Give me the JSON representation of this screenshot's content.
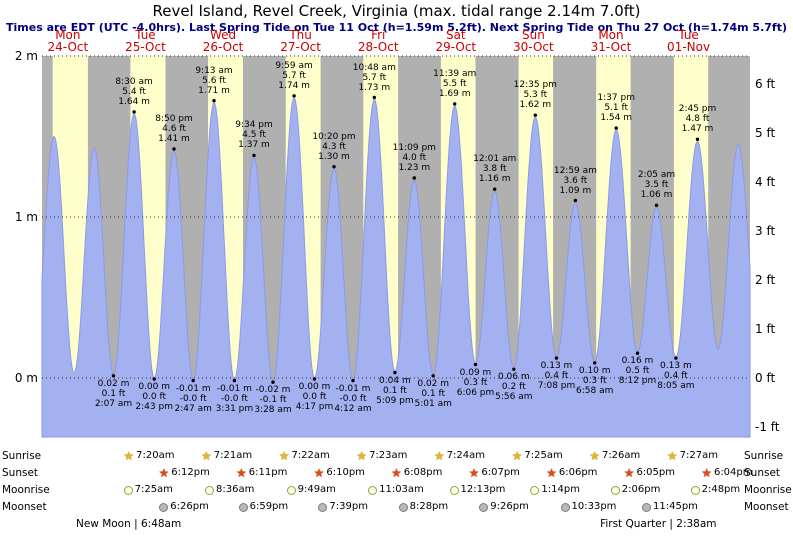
{
  "header": {
    "title": "Revel Island, Revel Creek, Virginia (max. tidal range 2.14m 7.0ft)",
    "subtitle": "Times are EDT (UTC -4.0hrs). Last Spring Tide on Tue 11 Oct (h=1.59m 5.2ft). Next Spring Tide on Thu 27 Oct (h=1.74m 5.7ft)"
  },
  "chart_data": {
    "type": "area",
    "title": "Revel Island, Revel Creek, Virginia tide curve",
    "x_axis": {
      "days": [
        {
          "name": "Mon",
          "date": "24-Oct"
        },
        {
          "name": "Tue",
          "date": "25-Oct"
        },
        {
          "name": "Wed",
          "date": "26-Oct"
        },
        {
          "name": "Thu",
          "date": "27-Oct"
        },
        {
          "name": "Fri",
          "date": "28-Oct"
        },
        {
          "name": "Sat",
          "date": "29-Oct"
        },
        {
          "name": "Sun",
          "date": "30-Oct"
        },
        {
          "name": "Mon",
          "date": "31-Oct"
        },
        {
          "name": "Tue",
          "date": "01-Nov"
        }
      ]
    },
    "y_axis_left": {
      "ticks": [
        {
          "label": "2 m",
          "value_m": 2
        },
        {
          "label": "1 m",
          "value_m": 1
        },
        {
          "label": "0 m",
          "value_m": 0
        }
      ]
    },
    "y_axis_right": {
      "ticks": [
        {
          "label": "6 ft",
          "value_ft": 6
        },
        {
          "label": "5 ft",
          "value_ft": 5
        },
        {
          "label": "4 ft",
          "value_ft": 4
        },
        {
          "label": "3 ft",
          "value_ft": 3
        },
        {
          "label": "2 ft",
          "value_ft": 2
        },
        {
          "label": "1 ft",
          "value_ft": 1
        },
        {
          "label": "0 ft",
          "value_ft": 0
        },
        {
          "label": "-1 ft",
          "value_ft": -1
        }
      ]
    },
    "tide_events": [
      {
        "day": 1,
        "time": "2:07 am",
        "height_m": 0.02,
        "type": "low",
        "label_lines": [
          "0.02 m",
          "0.1 ft",
          "2:07 am"
        ]
      },
      {
        "day": 1,
        "time": "8:30 am",
        "height_m": 1.64,
        "type": "high",
        "label_lines": [
          "8:30 am",
          "5.4 ft",
          "1.64 m"
        ]
      },
      {
        "day": 1,
        "time": "2:43 pm",
        "height_m": 0.0,
        "type": "low",
        "label_lines": [
          "0.00 m",
          "0.0 ft",
          "2:43 pm"
        ]
      },
      {
        "day": 1,
        "time": "8:50 pm",
        "height_m": 1.41,
        "type": "high",
        "label_lines": [
          "8:50 pm",
          "4.6 ft",
          "1.41 m"
        ]
      },
      {
        "day": 2,
        "time": "2:47 am",
        "height_m": -0.01,
        "type": "low",
        "label_lines": [
          "-0.01 m",
          "-0.0 ft",
          "2:47 am"
        ]
      },
      {
        "day": 2,
        "time": "9:13 am",
        "height_m": 1.71,
        "type": "high",
        "label_lines": [
          "9:13 am",
          "5.6 ft",
          "1.71 m"
        ]
      },
      {
        "day": 2,
        "time": "3:31 pm",
        "height_m": -0.01,
        "type": "low",
        "label_lines": [
          "-0.01 m",
          "-0.0 ft",
          "3:31 pm"
        ]
      },
      {
        "day": 2,
        "time": "9:34 pm",
        "height_m": 1.37,
        "type": "high",
        "label_lines": [
          "9:34 pm",
          "4.5 ft",
          "1.37 m"
        ]
      },
      {
        "day": 3,
        "time": "3:28 am",
        "height_m": -0.02,
        "type": "low",
        "label_lines": [
          "-0.02 m",
          "-0.1 ft",
          "3:28 am"
        ]
      },
      {
        "day": 3,
        "time": "9:59 am",
        "height_m": 1.74,
        "type": "high",
        "label_lines": [
          "9:59 am",
          "5.7 ft",
          "1.74 m"
        ]
      },
      {
        "day": 3,
        "time": "4:17 pm",
        "height_m": 0.0,
        "type": "low",
        "label_lines": [
          "0.00 m",
          "0.0 ft",
          "4:17 pm"
        ]
      },
      {
        "day": 3,
        "time": "10:20 pm",
        "height_m": 1.3,
        "type": "high",
        "label_lines": [
          "10:20 pm",
          "4.3 ft",
          "1.30 m"
        ]
      },
      {
        "day": 4,
        "time": "4:12 am",
        "height_m": -0.01,
        "type": "low",
        "label_lines": [
          "-0.01 m",
          "-0.0 ft",
          "4:12 am"
        ]
      },
      {
        "day": 4,
        "time": "10:48 am",
        "height_m": 1.73,
        "type": "high",
        "label_lines": [
          "10:48 am",
          "5.7 ft",
          "1.73 m"
        ]
      },
      {
        "day": 4,
        "time": "5:09 pm",
        "height_m": 0.04,
        "type": "low",
        "label_lines": [
          "0.04 m",
          "0.1 ft",
          "5:09 pm"
        ]
      },
      {
        "day": 4,
        "time": "11:09 pm",
        "height_m": 1.23,
        "type": "high",
        "label_lines": [
          "11:09 pm",
          "4.0 ft",
          "1.23 m"
        ]
      },
      {
        "day": 5,
        "time": "5:01 am",
        "height_m": 0.02,
        "type": "low",
        "label_lines": [
          "0.02 m",
          "0.1 ft",
          "5:01 am"
        ]
      },
      {
        "day": 5,
        "time": "11:39 am",
        "height_m": 1.69,
        "type": "high",
        "label_lines": [
          "11:39 am",
          "5.5 ft",
          "1.69 m"
        ]
      },
      {
        "day": 5,
        "time": "6:06 pm",
        "height_m": 0.09,
        "type": "low",
        "label_lines": [
          "0.09 m",
          "0.3 ft",
          "6:06 pm"
        ]
      },
      {
        "day": 6,
        "time": "12:01 am",
        "height_m": 1.16,
        "type": "high",
        "label_lines": [
          "12:01 am",
          "3.8 ft",
          "1.16 m"
        ]
      },
      {
        "day": 6,
        "time": "5:56 am",
        "height_m": 0.06,
        "type": "low",
        "label_lines": [
          "0.06 m",
          "0.2 ft",
          "5:56 am"
        ]
      },
      {
        "day": 6,
        "time": "12:35 pm",
        "height_m": 1.62,
        "type": "high",
        "label_lines": [
          "12:35 pm",
          "5.3 ft",
          "1.62 m"
        ]
      },
      {
        "day": 6,
        "time": "7:08 pm",
        "height_m": 0.13,
        "type": "low",
        "label_lines": [
          "0.13 m",
          "0.4 ft",
          "7:08 pm"
        ]
      },
      {
        "day": 7,
        "time": "12:59 am",
        "height_m": 1.09,
        "type": "high",
        "label_lines": [
          "12:59 am",
          "3.6 ft",
          "1.09 m"
        ]
      },
      {
        "day": 7,
        "time": "6:58 am",
        "height_m": 0.1,
        "type": "low",
        "label_lines": [
          "0.10 m",
          "0.3 ft",
          "6:58 am"
        ]
      },
      {
        "day": 7,
        "time": "1:37 pm",
        "height_m": 1.54,
        "type": "high",
        "label_lines": [
          "1:37 pm",
          "5.1 ft",
          "1.54 m"
        ]
      },
      {
        "day": 7,
        "time": "8:12 pm",
        "height_m": 0.16,
        "type": "low",
        "label_lines": [
          "0.16 m",
          "0.5 ft",
          "8:12 pm"
        ]
      },
      {
        "day": 8,
        "time": "2:05 am",
        "height_m": 1.06,
        "type": "high",
        "label_lines": [
          "2:05 am",
          "3.5 ft",
          "1.06 m"
        ]
      },
      {
        "day": 8,
        "time": "8:05 am",
        "height_m": 0.13,
        "type": "low",
        "label_lines": [
          "0.13 m",
          "0.4 ft",
          "8:05 am"
        ]
      },
      {
        "day": 8,
        "time": "2:45 pm",
        "height_m": 1.47,
        "type": "high",
        "label_lines": [
          "2:45 pm",
          "4.8 ft",
          "1.47 m"
        ]
      }
    ],
    "estimated_curve_events": [
      {
        "day": 0,
        "time": "1:20 am",
        "height_m": 0.1
      },
      {
        "day": 0,
        "time": "7:45 am",
        "height_m": 1.5
      },
      {
        "day": 0,
        "time": "1:55 pm",
        "height_m": 0.03
      },
      {
        "day": 0,
        "time": "8:10 pm",
        "height_m": 1.43
      },
      {
        "day": 8,
        "time": "9:10 pm",
        "height_m": 0.18
      },
      {
        "day": 9,
        "time": "3:20 am",
        "height_m": 1.45
      },
      {
        "day": 9,
        "time": "9:45 am",
        "height_m": 0.2
      }
    ],
    "day0_sun_estimate": {
      "sunrise": "7:19 am",
      "sunset": "6:13 pm"
    },
    "colors": {
      "day_band": "#ffffcc",
      "night_band": "#b0b0b0",
      "tide_fill": "#a3b1f0",
      "tide_stroke": "#8b9ae8",
      "day_label": "#cc0000",
      "subtitle": "#000080"
    }
  },
  "astro": {
    "rows": [
      {
        "name": "Sunrise",
        "icon": "sunrise-star-icon",
        "times": [
          "7:20am",
          "7:21am",
          "7:22am",
          "7:23am",
          "7:24am",
          "7:25am",
          "7:26am",
          "7:27am"
        ]
      },
      {
        "name": "Sunset",
        "icon": "sunset-star-icon",
        "times": [
          "6:12pm",
          "6:11pm",
          "6:10pm",
          "6:08pm",
          "6:07pm",
          "6:06pm",
          "6:05pm",
          "6:04pm"
        ]
      },
      {
        "name": "Moonrise",
        "icon": "moonrise-circle-icon",
        "times": [
          "7:25am",
          "8:36am",
          "9:49am",
          "11:03am",
          "12:13pm",
          "1:14pm",
          "2:06pm",
          "2:48pm"
        ]
      },
      {
        "name": "Moonset",
        "icon": "moonset-circle-icon",
        "times": [
          "6:26pm",
          "6:59pm",
          "7:39pm",
          "8:28pm",
          "9:26pm",
          "10:33pm",
          "11:45pm"
        ]
      }
    ],
    "moon_phase_events": [
      {
        "display": "New Moon | 6:48am",
        "day": 1,
        "time": "6:48 am"
      },
      {
        "display": "First Quarter | 2:38am",
        "day": 8,
        "time": "2:38 am"
      }
    ]
  }
}
